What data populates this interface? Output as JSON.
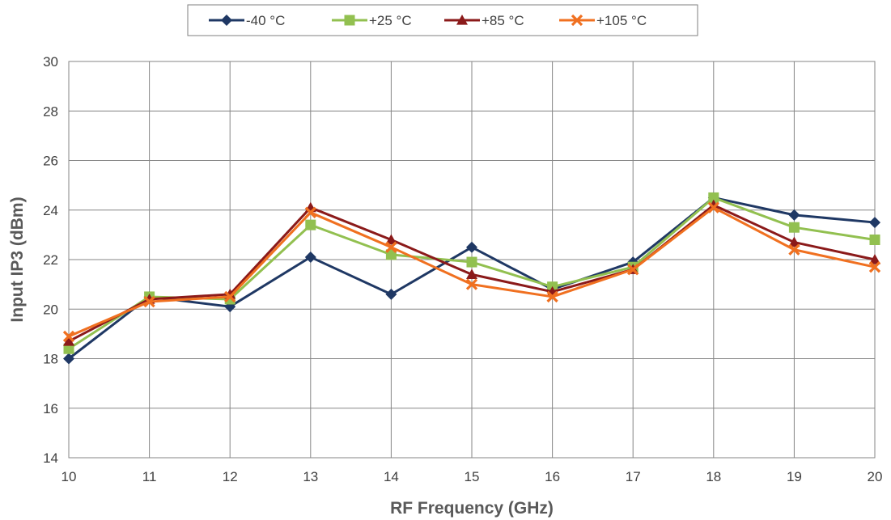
{
  "chart_data": {
    "type": "line",
    "xlabel": "RF Frequency (GHz)",
    "ylabel": "Input IP3 (dBm)",
    "xlim": [
      10,
      20
    ],
    "ylim": [
      14,
      30
    ],
    "x_ticks": [
      10,
      11,
      12,
      13,
      14,
      15,
      16,
      17,
      18,
      19,
      20
    ],
    "y_ticks": [
      14,
      16,
      18,
      20,
      22,
      24,
      26,
      28,
      30
    ],
    "grid": true,
    "legend_position": "top",
    "x": [
      10,
      11,
      12,
      13,
      14,
      15,
      16,
      17,
      18,
      19,
      20
    ],
    "series": [
      {
        "name": "-40 °C",
        "color": "#1f3864",
        "marker": "diamond",
        "values": [
          18.0,
          20.5,
          20.1,
          22.1,
          20.6,
          22.5,
          20.8,
          21.9,
          24.5,
          23.8,
          23.5
        ]
      },
      {
        "name": "+25 °C",
        "color": "#92c050",
        "marker": "square",
        "values": [
          18.4,
          20.5,
          20.4,
          23.4,
          22.2,
          21.9,
          20.9,
          21.7,
          24.5,
          23.3,
          22.8
        ]
      },
      {
        "name": "+85 °C",
        "color": "#8b1a1a",
        "marker": "triangle",
        "values": [
          18.7,
          20.4,
          20.6,
          24.1,
          22.8,
          21.4,
          20.7,
          21.6,
          24.2,
          22.7,
          22.0
        ]
      },
      {
        "name": "+105 °C",
        "color": "#f07020",
        "marker": "x",
        "values": [
          18.9,
          20.3,
          20.5,
          23.9,
          22.5,
          21.0,
          20.5,
          21.6,
          24.1,
          22.4,
          21.7
        ]
      }
    ]
  }
}
